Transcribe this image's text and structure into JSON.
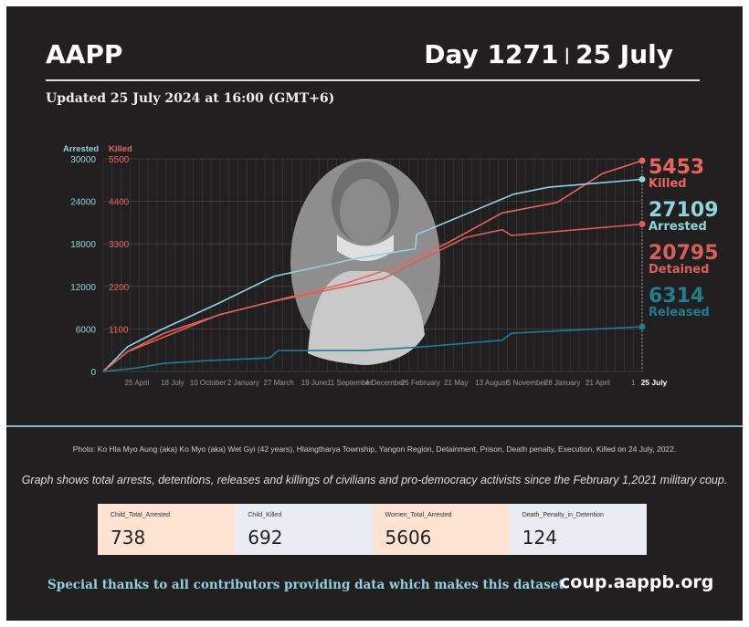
{
  "header": {
    "brand": "AAPP",
    "day": "Day 1271",
    "separator": "|",
    "date": "25 July"
  },
  "updated": "Updated 25 July 2024 at 16:00 (GMT+6)",
  "colors": {
    "arrested": "#8fd3dc",
    "killed": "#e8655c",
    "detained": "#d9605a",
    "released": "#1f7f8e"
  },
  "chart_data": {
    "type": "line",
    "title": "",
    "axis_left": {
      "label": "Arrested",
      "ticks": [
        0,
        6000,
        12000,
        18000,
        24000,
        30000
      ],
      "range": [
        0,
        30000
      ]
    },
    "axis_right": {
      "label": "Killed",
      "ticks": [
        1100,
        2200,
        3300,
        4400,
        5500
      ],
      "range": [
        0,
        5500
      ]
    },
    "x_range_days": [
      0,
      1271
    ],
    "x_tick_labels": [
      "25 April",
      "18 July",
      "10 October",
      "2 January",
      "27 March",
      "19 June",
      "11 September",
      "4 December",
      "26 February",
      "21 May",
      "13 August",
      "5 November",
      "28 January",
      "21 April",
      "1"
    ],
    "x_end_label": "25 July",
    "series": [
      {
        "name": "Killed",
        "axis": "right",
        "final_value": "5453",
        "final_label": "Killed",
        "points": [
          [
            0,
            0
          ],
          [
            58,
            520
          ],
          [
            144,
            990
          ],
          [
            273,
            1460
          ],
          [
            402,
            1820
          ],
          [
            575,
            2290
          ],
          [
            704,
            2760
          ],
          [
            808,
            3300
          ],
          [
            941,
            4100
          ],
          [
            1070,
            4370
          ],
          [
            1178,
            5120
          ],
          [
            1271,
            5453
          ]
        ]
      },
      {
        "name": "Arrested",
        "axis": "left",
        "final_value": "27109",
        "final_label": "Arrested",
        "points": [
          [
            0,
            0
          ],
          [
            58,
            3500
          ],
          [
            133,
            5800
          ],
          [
            273,
            9650
          ],
          [
            402,
            13400
          ],
          [
            603,
            16000
          ],
          [
            736,
            17300
          ],
          [
            739,
            19300
          ],
          [
            968,
            25000
          ],
          [
            1051,
            26000
          ],
          [
            1271,
            27109
          ]
        ]
      },
      {
        "name": "Detained",
        "axis": "left",
        "final_value": "20795",
        "final_label": "Detained",
        "points": [
          [
            0,
            0
          ],
          [
            58,
            2800
          ],
          [
            273,
            8000
          ],
          [
            402,
            9900
          ],
          [
            661,
            13100
          ],
          [
            855,
            18900
          ],
          [
            941,
            20000
          ],
          [
            963,
            19200
          ],
          [
            1271,
            20795
          ]
        ]
      },
      {
        "name": "Released",
        "axis": "left",
        "final_value": "6314",
        "final_label": "Released",
        "points": [
          [
            0,
            0
          ],
          [
            80,
            500
          ],
          [
            144,
            1150
          ],
          [
            252,
            1550
          ],
          [
            392,
            1900
          ],
          [
            413,
            2950
          ],
          [
            618,
            2950
          ],
          [
            758,
            3500
          ],
          [
            941,
            4400
          ],
          [
            963,
            5400
          ],
          [
            1271,
            6314
          ]
        ]
      }
    ]
  },
  "photo_caption": "Photo: Ko Hla Myo Aung (aka) Ko Myo (aka) Wet Gyi (42 years), Hlaingtharya Township, Yangon Region, Detainment, Prison, Death penalty, Execution, Killed on 24 July, 2022.",
  "graph_note": "Graph shows total arrests, detentions, releases and killings of civilians and pro-democracy activists since the February 1,2021 military coup.",
  "stats": [
    {
      "label": "Child_Total_Arrested",
      "value": "738"
    },
    {
      "label": "Child_Killed",
      "value": "692"
    },
    {
      "label": "Women_Total_Arrested",
      "value": "5606"
    },
    {
      "label": "Death_Penalty_in_Detention",
      "value": "124"
    }
  ],
  "footer": {
    "thanks": "Special thanks to all contributors providing data which makes this dataset.",
    "site": "coup.aappb.org"
  }
}
